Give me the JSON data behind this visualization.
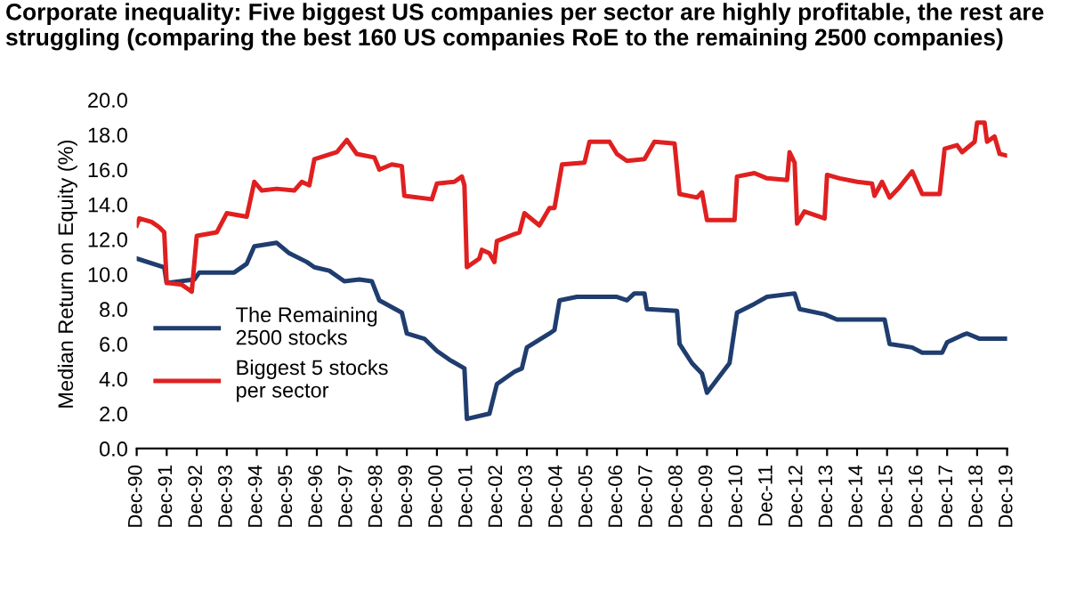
{
  "chart_data": {
    "type": "line",
    "title": "Corporate inequality: Five biggest US companies per sector are highly profitable, the rest are struggling (comparing the best 160 US companies RoE to the remaining 2500 companies)",
    "ylabel": "Median Return on Equity (%)",
    "xlim": [
      "1990-12",
      "2019-12"
    ],
    "xticks": [
      {
        "value": "1990-12",
        "label": "Dec-90"
      },
      {
        "value": "1991-12",
        "label": "Dec-91"
      },
      {
        "value": "1992-12",
        "label": "Dec-92"
      },
      {
        "value": "1993-12",
        "label": "Dec-93"
      },
      {
        "value": "1994-12",
        "label": "Dec-94"
      },
      {
        "value": "1995-12",
        "label": "Dec-95"
      },
      {
        "value": "1996-12",
        "label": "Dec-96"
      },
      {
        "value": "1997-12",
        "label": "Dec-97"
      },
      {
        "value": "1998-12",
        "label": "Dec-98"
      },
      {
        "value": "1999-12",
        "label": "Dec-99"
      },
      {
        "value": "2000-12",
        "label": "Dec-00"
      },
      {
        "value": "2001-12",
        "label": "Dec-01"
      },
      {
        "value": "2002-12",
        "label": "Dec-02"
      },
      {
        "value": "2003-12",
        "label": "Dec-03"
      },
      {
        "value": "2004-12",
        "label": "Dec-04"
      },
      {
        "value": "2005-12",
        "label": "Dec-05"
      },
      {
        "value": "2006-12",
        "label": "Dec-06"
      },
      {
        "value": "2007-12",
        "label": "Dec-07"
      },
      {
        "value": "2008-12",
        "label": "Dec-08"
      },
      {
        "value": "2009-12",
        "label": "Dec-09"
      },
      {
        "value": "2010-12",
        "label": "Dec-10"
      },
      {
        "value": "2011-12",
        "label": "Dec-11"
      },
      {
        "value": "2012-12",
        "label": "Dec-12"
      },
      {
        "value": "2013-12",
        "label": "Dec-13"
      },
      {
        "value": "2014-12",
        "label": "Dec-14"
      },
      {
        "value": "2015-12",
        "label": "Dec-15"
      },
      {
        "value": "2016-12",
        "label": "Dec-16"
      },
      {
        "value": "2017-12",
        "label": "Dec-17"
      },
      {
        "value": "2018-12",
        "label": "Dec-18"
      },
      {
        "value": "2019-12",
        "label": "Dec-19"
      }
    ],
    "ylim": [
      0,
      20
    ],
    "yticks": [
      {
        "value": 0,
        "label": "0.0"
      },
      {
        "value": 2,
        "label": "2.0"
      },
      {
        "value": 4,
        "label": "4.0"
      },
      {
        "value": 6,
        "label": "6.0"
      },
      {
        "value": 8,
        "label": "8.0"
      },
      {
        "value": 10,
        "label": "10.0"
      },
      {
        "value": 12,
        "label": "12.0"
      },
      {
        "value": 14,
        "label": "14.0"
      },
      {
        "value": 16,
        "label": "16.0"
      },
      {
        "value": 18,
        "label": "18.0"
      },
      {
        "value": 20,
        "label": "20.0"
      }
    ],
    "grid": false,
    "legend": "bottom left",
    "line_style": "solid",
    "series": [
      {
        "name": "The Remaining\n2500 stocks",
        "color": "#1f3d6e",
        "x": [
          "1990-12",
          "1991-11",
          "1991-12",
          "1992-11",
          "1993-01",
          "1994-03",
          "1994-08",
          "1994-11",
          "1995-08",
          "1996-01",
          "1996-08",
          "1996-11",
          "1997-05",
          "1997-11",
          "1998-05",
          "1998-10",
          "1999-01",
          "1999-10",
          "1999-12",
          "2000-07",
          "2000-12",
          "2001-05",
          "2001-11",
          "2001-12",
          "2002-09",
          "2002-12",
          "2003-07",
          "2003-10",
          "2003-12",
          "2004-09",
          "2004-11",
          "2005-01",
          "2005-08",
          "2006-12",
          "2007-04",
          "2007-07",
          "2007-11",
          "2007-12",
          "2008-12",
          "2009-01",
          "2009-06",
          "2009-10",
          "2009-12",
          "2010-09",
          "2010-12",
          "2011-07",
          "2011-12",
          "2012-11",
          "2013-01",
          "2013-11",
          "2014-04",
          "2015-11",
          "2016-01",
          "2016-10",
          "2017-02",
          "2017-10",
          "2017-12",
          "2018-06",
          "2018-08",
          "2019-01",
          "2019-12"
        ],
        "values": [
          10.9,
          10.4,
          9.5,
          9.7,
          10.1,
          10.1,
          10.6,
          11.6,
          11.8,
          11.2,
          10.7,
          10.4,
          10.2,
          9.6,
          9.7,
          9.6,
          8.5,
          7.8,
          6.6,
          6.3,
          5.6,
          5.1,
          4.6,
          1.7,
          2.0,
          3.7,
          4.4,
          4.6,
          5.8,
          6.6,
          6.8,
          8.5,
          8.7,
          8.7,
          8.5,
          8.9,
          8.9,
          8.0,
          7.9,
          6.0,
          4.9,
          4.3,
          3.2,
          4.9,
          7.8,
          8.3,
          8.7,
          8.9,
          8.0,
          7.7,
          7.4,
          7.4,
          6.0,
          5.8,
          5.5,
          5.5,
          6.1,
          6.5,
          6.6,
          6.3,
          6.3
        ]
      },
      {
        "name": "Biggest 5 stocks\nper sector",
        "color": "#e02020",
        "x": [
          "1990-12",
          "1991-01",
          "1991-06",
          "1991-09",
          "1991-11",
          "1991-12",
          "1992-06",
          "1992-08",
          "1992-10",
          "1992-12",
          "1993-08",
          "1993-12",
          "1994-08",
          "1994-11",
          "1995-02",
          "1995-08",
          "1996-03",
          "1996-06",
          "1996-09",
          "1996-11",
          "1997-08",
          "1997-12",
          "1998-04",
          "1998-11",
          "1999-01",
          "1999-06",
          "1999-10",
          "1999-11",
          "2000-10",
          "2000-12",
          "2001-07",
          "2001-10",
          "2001-11",
          "2001-12",
          "2002-05",
          "2002-06",
          "2002-09",
          "2002-11",
          "2002-12",
          "2003-07",
          "2003-09",
          "2003-11",
          "2004-05",
          "2004-09",
          "2004-11",
          "2005-02",
          "2005-11",
          "2006-01",
          "2006-09",
          "2006-12",
          "2007-04",
          "2007-11",
          "2008-03",
          "2008-11",
          "2009-01",
          "2009-08",
          "2009-10",
          "2009-12",
          "2010-11",
          "2010-12",
          "2011-07",
          "2011-12",
          "2012-08",
          "2012-09",
          "2012-11",
          "2012-12",
          "2013-03",
          "2013-11",
          "2013-12",
          "2014-05",
          "2014-12",
          "2015-06",
          "2015-07",
          "2015-10",
          "2016-01",
          "2016-05",
          "2016-10",
          "2017-02",
          "2017-09",
          "2017-11",
          "2018-04",
          "2018-06",
          "2018-11",
          "2018-12",
          "2019-03",
          "2019-04",
          "2019-07",
          "2019-09",
          "2019-12"
        ],
        "values": [
          12.8,
          13.2,
          13.0,
          12.7,
          12.4,
          9.5,
          9.4,
          9.2,
          9.0,
          12.2,
          12.4,
          13.5,
          13.3,
          15.3,
          14.8,
          14.9,
          14.8,
          15.3,
          15.1,
          16.6,
          17.0,
          17.7,
          16.9,
          16.7,
          16.0,
          16.3,
          16.2,
          14.5,
          14.3,
          15.2,
          15.3,
          15.6,
          15.1,
          10.4,
          10.9,
          11.4,
          11.2,
          10.7,
          11.9,
          12.3,
          12.4,
          13.5,
          12.8,
          13.8,
          13.8,
          16.3,
          16.4,
          17.6,
          17.6,
          16.9,
          16.5,
          16.6,
          17.6,
          17.5,
          14.6,
          14.4,
          14.7,
          13.1,
          13.1,
          15.6,
          15.8,
          15.5,
          15.4,
          17.0,
          16.4,
          12.9,
          13.6,
          13.2,
          15.7,
          15.5,
          15.3,
          15.2,
          14.5,
          15.3,
          14.4,
          15.0,
          15.9,
          14.6,
          14.6,
          17.2,
          17.4,
          17.0,
          17.6,
          18.7,
          18.7,
          17.6,
          17.9,
          16.9,
          16.8
        ]
      }
    ]
  }
}
